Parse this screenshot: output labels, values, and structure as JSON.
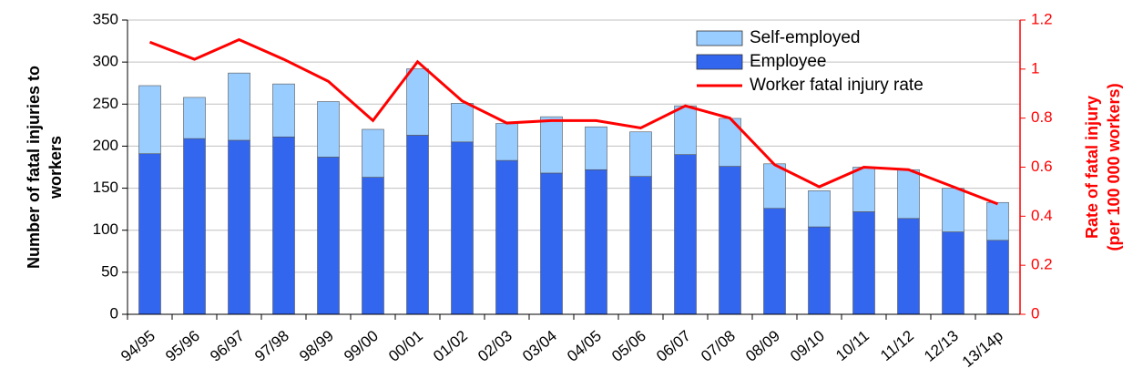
{
  "chart_data": {
    "type": "bar-line",
    "ylabel": [
      "Number of fatal injuries to",
      "workers"
    ],
    "y2label": [
      "Rate of fatal injury",
      "(per 100 000 workers)"
    ],
    "categories": [
      "94/95",
      "95/96",
      "96/97",
      "97/98",
      "98/99",
      "99/00",
      "00/01",
      "01/02",
      "02/03",
      "03/04",
      "04/05",
      "05/06",
      "06/07",
      "07/08",
      "08/09",
      "09/10",
      "10/11",
      "11/12",
      "12/13",
      "13/14p"
    ],
    "series": [
      {
        "name": "Self-employed",
        "color": "#99ccff",
        "type": "bar",
        "values": [
          81,
          49,
          80,
          63,
          66,
          57,
          79,
          46,
          44,
          67,
          51,
          53,
          58,
          57,
          53,
          43,
          53,
          58,
          52,
          45
        ]
      },
      {
        "name": "Employee",
        "color": "#3366ee",
        "type": "bar",
        "values": [
          191,
          209,
          207,
          211,
          187,
          163,
          213,
          205,
          183,
          168,
          172,
          164,
          190,
          176,
          126,
          104,
          122,
          114,
          98,
          88
        ]
      },
      {
        "name": "Worker fatal injury rate",
        "color": "#ff0000",
        "type": "line",
        "axis": "y2",
        "values": [
          1.11,
          1.04,
          1.12,
          1.04,
          0.95,
          0.79,
          1.03,
          0.87,
          0.78,
          0.79,
          0.79,
          0.76,
          0.85,
          0.8,
          0.61,
          0.52,
          0.6,
          0.59,
          0.52,
          0.45
        ]
      }
    ],
    "ylim": [
      0,
      350
    ],
    "yticks": [
      0,
      50,
      100,
      150,
      200,
      250,
      300,
      350
    ],
    "y2lim": [
      0,
      1.2
    ],
    "y2ticks": [
      0,
      0.2,
      0.4,
      0.6,
      0.8,
      1,
      1.2
    ],
    "y2color": "#ff0000",
    "grid": true,
    "stacked": true,
    "legend": "top-right"
  }
}
